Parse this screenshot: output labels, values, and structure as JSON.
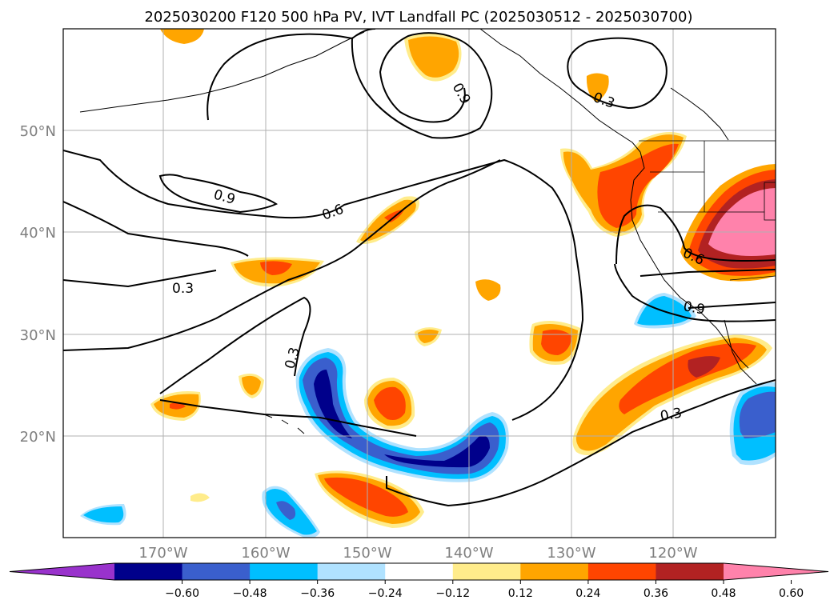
{
  "title": "2025030200 F120 500 hPa PV, IVT Landfall PC (2025030512 - 2025030700)",
  "lat_labels": [
    "50°N",
    "40°N",
    "30°N",
    "20°N"
  ],
  "lon_labels": [
    "170°W",
    "160°W",
    "150°W",
    "140°W",
    "130°W",
    "120°W"
  ],
  "colorbar": {
    "ticks": [
      "−0.60",
      "−0.48",
      "−0.36",
      "−0.24",
      "−0.12",
      "0.12",
      "0.24",
      "0.36",
      "0.48",
      "0.60"
    ],
    "colors": [
      "#9932cc",
      "#00008b",
      "#3a5fcd",
      "#00bfff",
      "#b0e2ff",
      "#ffffff",
      "#ffec8b",
      "#ffa500",
      "#ff4500",
      "#b22222",
      "#ff82ab"
    ]
  },
  "contour_labels": [
    "0.9",
    "0.3",
    "0.9",
    "0.6",
    "0.3",
    "0.3",
    "0.6",
    "0.9",
    "0.3"
  ],
  "colors": {
    "coast": "#000000",
    "grid": "#b0b0b0",
    "contour": "#000000"
  }
}
